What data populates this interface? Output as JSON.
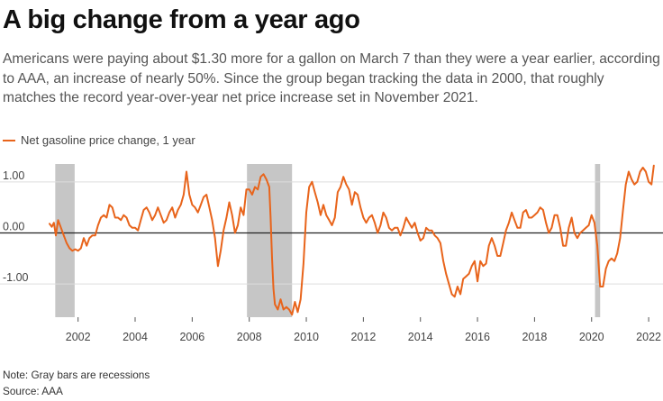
{
  "header": {
    "title": "A big change from a year ago",
    "subtitle": "Americans were paying about $1.30 more for a gallon on March 7 than they were a year earlier, according to AAA, an increase of nearly 50%. Since the group began tracking the data in 2000, that roughly matches the record year-over-year net price increase set in November 2021."
  },
  "footer": {
    "note": "Note: Gray bars are recessions",
    "source": "Source: AAA"
  },
  "colors": {
    "line": "#e8641b",
    "recession": "#c6c6c6",
    "grid": "#dddddd",
    "zero_line": "#222222"
  },
  "chart_data": {
    "type": "line",
    "title": "",
    "xlabel": "",
    "ylabel": "",
    "xlim": [
      2001.0,
      2022.25
    ],
    "ylim": [
      -1.65,
      1.35
    ],
    "grid": true,
    "legend_placement": "top-left",
    "y_ticks": [
      {
        "value": 1.0,
        "label": "1.00"
      },
      {
        "value": 0.0,
        "label": "0.00"
      },
      {
        "value": -1.0,
        "label": "-1.00"
      }
    ],
    "x_ticks": [
      {
        "value": 2002,
        "label": "2002"
      },
      {
        "value": 2004,
        "label": "2004"
      },
      {
        "value": 2006,
        "label": "2006"
      },
      {
        "value": 2008,
        "label": "2008"
      },
      {
        "value": 2010,
        "label": "2010"
      },
      {
        "value": 2012,
        "label": "2012"
      },
      {
        "value": 2014,
        "label": "2014"
      },
      {
        "value": 2016,
        "label": "2016"
      },
      {
        "value": 2018,
        "label": "2018"
      },
      {
        "value": 2020,
        "label": "2020"
      },
      {
        "value": 2022,
        "label": "2022"
      }
    ],
    "recessions": [
      {
        "start": 2001.2,
        "end": 2001.88
      },
      {
        "start": 2007.92,
        "end": 2009.5
      },
      {
        "start": 2020.12,
        "end": 2020.3
      }
    ],
    "series": [
      {
        "name": "Net gasoline price change, 1 year",
        "x": [
          2001.0,
          2001.08,
          2001.15,
          2001.22,
          2001.3,
          2001.4,
          2001.5,
          2001.6,
          2001.7,
          2001.8,
          2001.9,
          2002.0,
          2002.1,
          2002.2,
          2002.3,
          2002.4,
          2002.5,
          2002.6,
          2002.7,
          2002.8,
          2002.9,
          2003.0,
          2003.1,
          2003.2,
          2003.3,
          2003.4,
          2003.5,
          2003.6,
          2003.7,
          2003.8,
          2003.9,
          2004.0,
          2004.1,
          2004.2,
          2004.3,
          2004.4,
          2004.5,
          2004.6,
          2004.7,
          2004.8,
          2004.9,
          2005.0,
          2005.1,
          2005.2,
          2005.3,
          2005.4,
          2005.5,
          2005.6,
          2005.7,
          2005.8,
          2005.9,
          2006.0,
          2006.1,
          2006.2,
          2006.3,
          2006.4,
          2006.5,
          2006.6,
          2006.7,
          2006.8,
          2006.9,
          2007.0,
          2007.1,
          2007.2,
          2007.3,
          2007.4,
          2007.5,
          2007.6,
          2007.7,
          2007.8,
          2007.9,
          2008.0,
          2008.1,
          2008.2,
          2008.3,
          2008.4,
          2008.5,
          2008.6,
          2008.7,
          2008.75,
          2008.8,
          2008.85,
          2008.9,
          2009.0,
          2009.1,
          2009.2,
          2009.3,
          2009.4,
          2009.5,
          2009.6,
          2009.7,
          2009.8,
          2009.9,
          2010.0,
          2010.1,
          2010.2,
          2010.3,
          2010.4,
          2010.5,
          2010.6,
          2010.7,
          2010.8,
          2010.9,
          2011.0,
          2011.1,
          2011.2,
          2011.3,
          2011.4,
          2011.5,
          2011.6,
          2011.7,
          2011.8,
          2011.9,
          2012.0,
          2012.1,
          2012.2,
          2012.3,
          2012.4,
          2012.5,
          2012.6,
          2012.7,
          2012.8,
          2012.9,
          2013.0,
          2013.1,
          2013.2,
          2013.3,
          2013.4,
          2013.5,
          2013.6,
          2013.7,
          2013.8,
          2013.9,
          2014.0,
          2014.1,
          2014.2,
          2014.3,
          2014.4,
          2014.5,
          2014.6,
          2014.7,
          2014.8,
          2014.9,
          2015.0,
          2015.1,
          2015.2,
          2015.3,
          2015.4,
          2015.5,
          2015.6,
          2015.7,
          2015.8,
          2015.9,
          2016.0,
          2016.1,
          2016.2,
          2016.3,
          2016.4,
          2016.5,
          2016.6,
          2016.7,
          2016.8,
          2016.9,
          2017.0,
          2017.1,
          2017.2,
          2017.3,
          2017.4,
          2017.5,
          2017.6,
          2017.7,
          2017.8,
          2017.9,
          2018.0,
          2018.1,
          2018.2,
          2018.3,
          2018.4,
          2018.5,
          2018.6,
          2018.7,
          2018.8,
          2018.9,
          2019.0,
          2019.1,
          2019.2,
          2019.3,
          2019.4,
          2019.5,
          2019.6,
          2019.7,
          2019.8,
          2019.9,
          2020.0,
          2020.1,
          2020.2,
          2020.3,
          2020.4,
          2020.5,
          2020.6,
          2020.7,
          2020.8,
          2020.9,
          2021.0,
          2021.1,
          2021.2,
          2021.3,
          2021.4,
          2021.5,
          2021.6,
          2021.7,
          2021.8,
          2021.9,
          2022.0,
          2022.1,
          2022.18
        ],
        "values": [
          0.18,
          0.12,
          0.2,
          -0.05,
          0.25,
          0.1,
          -0.05,
          -0.2,
          -0.3,
          -0.35,
          -0.32,
          -0.35,
          -0.3,
          -0.1,
          -0.25,
          -0.1,
          -0.05,
          -0.05,
          0.15,
          0.3,
          0.35,
          0.3,
          0.55,
          0.5,
          0.3,
          0.3,
          0.25,
          0.35,
          0.3,
          0.15,
          0.1,
          0.1,
          0.05,
          0.25,
          0.45,
          0.5,
          0.4,
          0.25,
          0.35,
          0.5,
          0.35,
          0.2,
          0.25,
          0.4,
          0.5,
          0.3,
          0.45,
          0.55,
          0.75,
          1.2,
          0.75,
          0.55,
          0.5,
          0.4,
          0.55,
          0.7,
          0.75,
          0.5,
          0.25,
          -0.1,
          -0.65,
          -0.35,
          0.05,
          0.3,
          0.6,
          0.35,
          0.0,
          0.15,
          0.5,
          0.35,
          0.85,
          0.85,
          0.75,
          0.9,
          0.85,
          1.1,
          1.15,
          1.05,
          0.9,
          0.3,
          -0.5,
          -1.1,
          -1.4,
          -1.5,
          -1.3,
          -1.5,
          -1.45,
          -1.5,
          -1.6,
          -1.35,
          -1.55,
          -1.3,
          -0.6,
          0.4,
          0.9,
          1.0,
          0.8,
          0.6,
          0.35,
          0.55,
          0.35,
          0.25,
          0.15,
          0.3,
          0.8,
          0.9,
          1.1,
          0.95,
          0.85,
          0.55,
          0.8,
          0.75,
          0.5,
          0.3,
          0.2,
          0.3,
          0.35,
          0.2,
          0.0,
          0.15,
          0.4,
          0.3,
          0.1,
          0.05,
          0.1,
          0.1,
          -0.05,
          0.1,
          0.3,
          0.2,
          0.1,
          0.2,
          0.0,
          -0.15,
          -0.1,
          0.1,
          0.05,
          0.05,
          -0.05,
          -0.1,
          -0.2,
          -0.55,
          -0.8,
          -1.0,
          -1.2,
          -1.25,
          -1.05,
          -1.2,
          -0.9,
          -0.85,
          -0.8,
          -0.65,
          -0.55,
          -0.95,
          -0.55,
          -0.65,
          -0.6,
          -0.25,
          -0.1,
          -0.25,
          -0.45,
          -0.45,
          -0.2,
          0.05,
          0.2,
          0.4,
          0.25,
          0.1,
          0.1,
          0.4,
          0.45,
          0.3,
          0.3,
          0.35,
          0.4,
          0.5,
          0.45,
          0.2,
          0.0,
          0.1,
          0.35,
          0.35,
          0.1,
          -0.25,
          -0.25,
          0.1,
          0.3,
          0.0,
          -0.1,
          0.0,
          0.05,
          0.1,
          0.15,
          0.35,
          0.2,
          -0.25,
          -1.05,
          -1.05,
          -0.7,
          -0.55,
          -0.5,
          -0.55,
          -0.4,
          -0.1,
          0.45,
          0.95,
          1.2,
          1.05,
          0.95,
          1.0,
          1.2,
          1.28,
          1.2,
          1.0,
          0.95,
          1.32
        ]
      }
    ]
  }
}
